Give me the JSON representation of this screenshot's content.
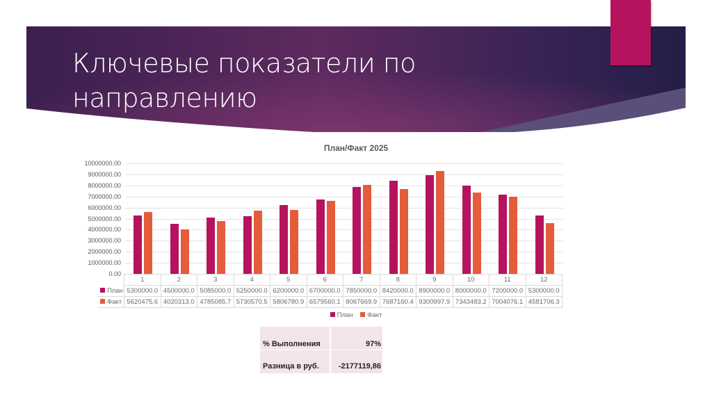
{
  "slide": {
    "title_line1": "Ключевые показатели по",
    "title_line2": "направлению",
    "colors": {
      "banner_dark": "#2a2150",
      "banner_mid": "#6a2a63",
      "accent": "#b5135e"
    }
  },
  "chart_data": {
    "type": "bar",
    "title": "План/Факт 2025",
    "xlabel": "",
    "ylabel": "",
    "ylim": [
      0,
      10000000
    ],
    "yticks": [
      "10000000.00",
      "9000000.00",
      "8000000.00",
      "7000000.00",
      "6000000.00",
      "5000000.00",
      "4000000.00",
      "3000000.00",
      "2000000.00",
      "1000000.00",
      "0.00"
    ],
    "grid": true,
    "legend_position": "bottom",
    "categories": [
      "1",
      "2",
      "3",
      "4",
      "5",
      "6",
      "7",
      "8",
      "9",
      "10",
      "11",
      "12"
    ],
    "series": [
      {
        "name": "План",
        "color": "#b5135e",
        "values": [
          5300000.0,
          4500000.0,
          5085000.0,
          5250000.0,
          6200000.0,
          6700000.0,
          7850000.0,
          8420000.0,
          8900000.0,
          8000000.0,
          7200000.0,
          5300000.0
        ]
      },
      {
        "name": "Факт",
        "color": "#e45c3a",
        "values": [
          5620475.6,
          4020313.0,
          4785085.7,
          5730570.5,
          5806780.9,
          6579560.1,
          8067669.9,
          7687160.4,
          9300997.9,
          7343483.2,
          7004076.1,
          4581706.3
        ]
      }
    ],
    "table_rows": [
      {
        "label": "План",
        "values": [
          "5300000.0",
          "4500000.0",
          "5085000.0",
          "5250000.0",
          "6200000.0",
          "6700000.0",
          "7850000.0",
          "8420000.0",
          "8900000.0",
          "8000000.0",
          "7200000.0",
          "5300000.0"
        ]
      },
      {
        "label": "Факт",
        "values": [
          "5620475.6",
          "4020313.0",
          "4785085.7",
          "5730570.5",
          "5806780.9",
          "6579560.1",
          "8067669.9",
          "7687160.4",
          "9300997.9",
          "7343483.2",
          "7004076.1",
          "4581706.3"
        ]
      }
    ]
  },
  "legend": {
    "plan": "План",
    "fact": "Факт"
  },
  "summary": {
    "rows": [
      {
        "label": "% Выполнения",
        "value": "97%"
      },
      {
        "label": "Разница в руб.",
        "value": "-2177119,86"
      }
    ]
  }
}
